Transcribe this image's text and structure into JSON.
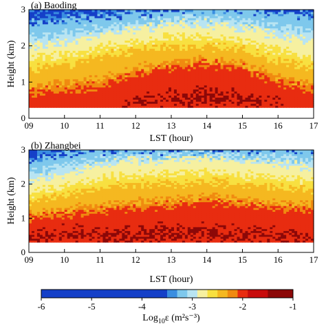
{
  "chart_data": [
    {
      "type": "heatmap",
      "title": "(a) Baoding",
      "xlabel": "LST (hour)",
      "ylabel": "Height (km)",
      "xlim": [
        9,
        17
      ],
      "ylim": [
        0,
        3
      ],
      "data_ylim": [
        0.3,
        3.0
      ],
      "x_ticks": [
        "09",
        "10",
        "11",
        "12",
        "13",
        "14",
        "15",
        "16",
        "17"
      ],
      "y_ticks": [
        "0",
        "1",
        "2",
        "3"
      ],
      "variable": "Log10 epsilon",
      "profile_hours": [
        9,
        10,
        11,
        12,
        13,
        14,
        15,
        16,
        17
      ],
      "contour_heights_km": [
        {
          "level": -2.0,
          "heights": [
            0.7,
            0.8,
            0.9,
            1.2,
            1.4,
            1.5,
            1.4,
            1.0,
            0.8
          ]
        },
        {
          "level": -2.5,
          "heights": [
            1.4,
            1.5,
            1.7,
            1.9,
            2.0,
            2.0,
            1.9,
            1.6,
            1.4
          ]
        },
        {
          "level": -3.0,
          "heights": [
            2.0,
            2.1,
            2.3,
            2.5,
            2.6,
            2.6,
            2.5,
            2.3,
            2.1
          ]
        },
        {
          "level": -3.5,
          "heights": [
            2.6,
            2.7,
            2.8,
            2.9,
            3.0,
            3.0,
            3.0,
            2.9,
            2.8
          ]
        }
      ],
      "core_max": {
        "level": -1.5,
        "heights": [
          0.0,
          0.0,
          0.0,
          0.6,
          0.7,
          0.8,
          0.7,
          0.5,
          0.0
        ]
      }
    },
    {
      "type": "heatmap",
      "title": "(b) Zhangbei",
      "xlabel": "LST (hour)",
      "ylabel": "Height (km)",
      "xlim": [
        9,
        17
      ],
      "ylim": [
        0,
        3
      ],
      "data_ylim": [
        0.3,
        3.0
      ],
      "x_ticks": [
        "09",
        "10",
        "11",
        "12",
        "13",
        "14",
        "15",
        "16",
        "17"
      ],
      "y_ticks": [
        "0",
        "1",
        "2",
        "3"
      ],
      "variable": "Log10 epsilon",
      "profile_hours": [
        9,
        10,
        11,
        12,
        13,
        14,
        15,
        16,
        17
      ],
      "contour_heights_km": [
        {
          "level": -2.0,
          "heights": [
            1.0,
            1.1,
            1.2,
            1.3,
            1.4,
            1.5,
            1.4,
            1.3,
            1.2
          ]
        },
        {
          "level": -2.5,
          "heights": [
            1.5,
            1.7,
            1.9,
            2.0,
            2.0,
            2.1,
            2.0,
            1.9,
            1.8
          ]
        },
        {
          "level": -3.0,
          "heights": [
            2.1,
            2.3,
            2.6,
            2.7,
            2.7,
            2.8,
            2.7,
            2.6,
            2.5
          ]
        },
        {
          "level": -3.5,
          "heights": [
            2.7,
            2.9,
            3.0,
            3.0,
            3.0,
            3.0,
            3.0,
            3.0,
            3.0
          ]
        }
      ],
      "core_max": {
        "level": -1.5,
        "heights": [
          0.6,
          0.7,
          0.7,
          0.7,
          0.8,
          0.8,
          0.7,
          0.7,
          0.6
        ]
      }
    }
  ],
  "colorbar": {
    "label_main": "Log",
    "label_sub": "10",
    "label_rest": "ε (m²s⁻³)",
    "ticks": [
      "-6",
      "-5",
      "-4",
      "-3",
      "-2",
      "-1"
    ],
    "range": [
      -6,
      -1
    ],
    "colors": [
      {
        "from": -6.0,
        "to": -3.5,
        "color": "#1540c8"
      },
      {
        "from": -3.5,
        "to": -3.3,
        "color": "#3a8ee0"
      },
      {
        "from": -3.3,
        "to": -3.1,
        "color": "#7ec8ec"
      },
      {
        "from": -3.1,
        "to": -2.9,
        "color": "#b8e4f2"
      },
      {
        "from": -2.9,
        "to": -2.7,
        "color": "#f6f0a0"
      },
      {
        "from": -2.7,
        "to": -2.5,
        "color": "#f8e040"
      },
      {
        "from": -2.5,
        "to": -2.3,
        "color": "#f5b820"
      },
      {
        "from": -2.3,
        "to": -2.1,
        "color": "#f08a10"
      },
      {
        "from": -2.1,
        "to": -1.9,
        "color": "#e82c10"
      },
      {
        "from": -1.9,
        "to": -1.5,
        "color": "#c80c0c"
      },
      {
        "from": -1.5,
        "to": -1.0,
        "color": "#8c0808"
      }
    ]
  }
}
